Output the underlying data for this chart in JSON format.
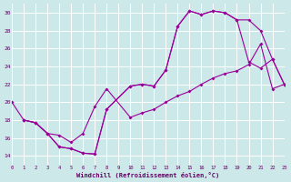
{
  "xlabel": "Windchill (Refroidissement éolien,°C)",
  "bg_color": "#cce8e8",
  "line_color": "#990099",
  "grid_color": "#ffffff",
  "xlim": [
    0,
    23
  ],
  "ylim": [
    13,
    31
  ],
  "xticks": [
    0,
    1,
    2,
    3,
    4,
    5,
    6,
    7,
    8,
    9,
    10,
    11,
    12,
    13,
    14,
    15,
    16,
    17,
    18,
    19,
    20,
    21,
    22,
    23
  ],
  "yticks": [
    14,
    16,
    18,
    20,
    22,
    24,
    26,
    28,
    30
  ],
  "lineA_x": [
    0,
    1,
    2,
    3,
    4,
    5,
    6,
    7,
    8,
    10,
    11,
    12,
    13,
    14,
    15,
    16,
    17,
    18,
    19,
    20,
    21,
    22,
    23
  ],
  "lineA_y": [
    20,
    18,
    17.7,
    16.5,
    15.0,
    14.8,
    14.3,
    14.2,
    19.2,
    21.8,
    22.0,
    21.8,
    23.6,
    28.5,
    30.2,
    29.8,
    30.2,
    30.0,
    29.2,
    29.2,
    28.0,
    24.8,
    22.0
  ],
  "lineB_x": [
    1,
    2,
    3,
    4,
    5,
    6,
    7,
    8,
    10,
    11,
    12,
    13,
    14,
    15,
    16,
    17,
    18,
    19,
    20,
    21,
    22,
    23
  ],
  "lineB_y": [
    18,
    17.7,
    16.5,
    15.0,
    14.8,
    14.3,
    14.2,
    19.2,
    21.8,
    22.0,
    21.8,
    23.6,
    28.5,
    30.2,
    29.8,
    30.2,
    30.0,
    29.2,
    24.5,
    23.8,
    24.8,
    22.0
  ],
  "lineC_x": [
    1,
    2,
    3,
    4,
    5,
    6,
    7,
    8,
    10,
    11,
    12,
    13,
    14,
    15,
    16,
    17,
    18,
    19,
    20,
    21,
    22,
    23
  ],
  "lineC_y": [
    18,
    17.7,
    16.5,
    16.3,
    15.5,
    16.5,
    19.5,
    21.5,
    18.3,
    18.8,
    19.2,
    20.0,
    20.7,
    21.2,
    22.0,
    22.7,
    23.2,
    23.5,
    24.2,
    26.5,
    21.5,
    22.0
  ]
}
